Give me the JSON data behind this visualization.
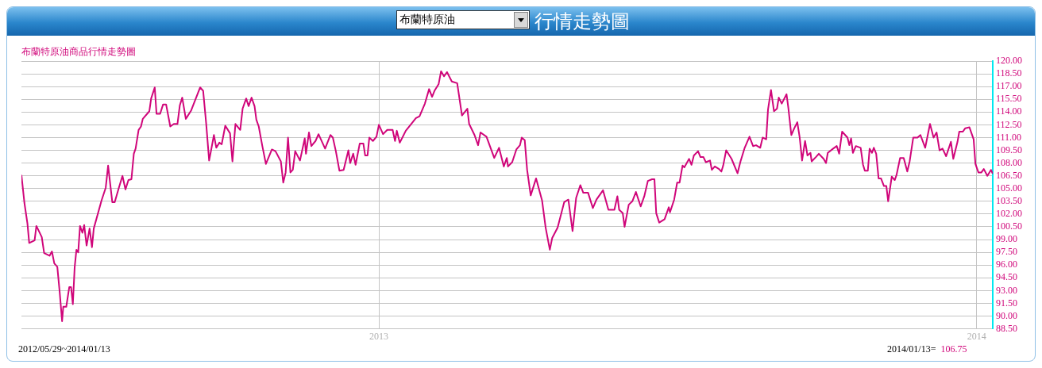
{
  "chart_data": {
    "type": "line",
    "title": "行情走勢圖",
    "subtitle": "布蘭特原油商品行情走勢圖",
    "annotations": [
      "布蘭特原油",
      "2012/05/29~2014/01/13",
      "2014/01/13=",
      "106.75"
    ],
    "color": "#d0067a",
    "marker": "none",
    "line_style": "solid",
    "grid": true,
    "xlim": [
      2012.402,
      2014.027
    ],
    "xticks": [
      2013,
      2014
    ],
    "ylim": [
      88.5,
      120
    ],
    "yticks": [
      {
        "value": 88.5,
        "label": "88.50"
      },
      {
        "value": 90,
        "label": "90.00"
      },
      {
        "value": 91.5,
        "label": "91.50"
      },
      {
        "value": 93,
        "label": "93.00"
      },
      {
        "value": 94.5,
        "label": "94.50"
      },
      {
        "value": 96,
        "label": "96.00"
      },
      {
        "value": 97.5,
        "label": "97.50"
      },
      {
        "value": 99,
        "label": "99.00"
      },
      {
        "value": 100.5,
        "label": "100.50"
      },
      {
        "value": 102,
        "label": "102.00"
      },
      {
        "value": 103.5,
        "label": "103.50"
      },
      {
        "value": 105,
        "label": "105.00"
      },
      {
        "value": 106.5,
        "label": "106.50"
      },
      {
        "value": 108,
        "label": "108.00"
      },
      {
        "value": 109.5,
        "label": "109.50"
      },
      {
        "value": 111,
        "label": "111.00"
      },
      {
        "value": 112.5,
        "label": "112.50"
      },
      {
        "value": 114,
        "label": "114.00"
      },
      {
        "value": 115.5,
        "label": "115.50"
      },
      {
        "value": 117,
        "label": "117.00"
      },
      {
        "value": 118.5,
        "label": "118.50"
      },
      {
        "value": 120,
        "label": "120.00"
      }
    ],
    "x": [
      2012.402,
      2012.407,
      2012.412,
      2012.415,
      2012.424,
      2012.427,
      2012.436,
      2012.44,
      2012.449,
      2012.453,
      2012.457,
      2012.462,
      2012.466,
      2012.47,
      2012.472,
      2012.477,
      2012.482,
      2012.485,
      2012.488,
      2012.491,
      2012.494,
      2012.497,
      2012.5,
      2012.504,
      2012.507,
      2012.511,
      2012.516,
      2012.52,
      2012.523,
      2012.536,
      2012.543,
      2012.547,
      2012.554,
      2012.558,
      2012.565,
      2012.571,
      2012.576,
      2012.581,
      2012.586,
      2012.59,
      2012.593,
      2012.598,
      2012.602,
      2012.605,
      2012.616,
      2012.619,
      2012.625,
      2012.628,
      2012.634,
      2012.639,
      2012.644,
      2012.651,
      2012.657,
      2012.663,
      2012.667,
      2012.671,
      2012.677,
      2012.686,
      2012.701,
      2012.706,
      2012.711,
      2012.716,
      2012.719,
      2012.724,
      2012.728,
      2012.733,
      2012.737,
      2012.743,
      2012.751,
      2012.755,
      2012.76,
      2012.768,
      2012.772,
      2012.778,
      2012.782,
      2012.787,
      2012.792,
      2012.795,
      2012.799,
      2012.805,
      2012.811,
      2012.821,
      2012.827,
      2012.836,
      2012.84,
      2012.844,
      2012.848,
      2012.852,
      2012.856,
      2012.86,
      2012.868,
      2012.876,
      2012.878,
      2012.883,
      2012.887,
      2012.894,
      2012.899,
      2012.91,
      2012.919,
      2012.923,
      2012.928,
      2012.934,
      2012.941,
      2012.949,
      2012.952,
      2012.957,
      2012.961,
      2012.968,
      2012.974,
      2012.977,
      2012.981,
      2012.984,
      2012.99,
      2012.996,
      2013.0,
      2013.007,
      2013.014,
      2013.023,
      2013.027,
      2013.03,
      2013.035,
      2013.045,
      2013.053,
      2013.062,
      2013.068,
      2013.077,
      2013.084,
      2013.089,
      2013.093,
      2013.1,
      2013.104,
      2013.109,
      2013.114,
      2013.122,
      2013.131,
      2013.139,
      2013.148,
      2013.151,
      2013.16,
      2013.166,
      2013.17,
      2013.18,
      2013.193,
      2013.201,
      2013.209,
      2013.214,
      2013.216,
      2013.223,
      2013.23,
      2013.236,
      2013.239,
      2013.244,
      2013.248,
      2013.254,
      2013.263,
      2013.273,
      2013.279,
      2013.286,
      2013.29,
      2013.299,
      2013.31,
      2013.317,
      2013.324,
      2013.33,
      2013.337,
      2013.342,
      2013.35,
      2013.358,
      2013.364,
      2013.375,
      2013.384,
      2013.394,
      2013.399,
      2013.402,
      2013.408,
      2013.411,
      2013.418,
      2013.424,
      2013.43,
      2013.438,
      2013.444,
      2013.45,
      2013.457,
      2013.461,
      2013.464,
      2013.469,
      2013.478,
      2013.485,
      2013.487,
      2013.494,
      2013.499,
      2013.503,
      2013.508,
      2013.511,
      2013.519,
      2013.523,
      2013.527,
      2013.534,
      2013.538,
      2013.543,
      2013.547,
      2013.554,
      2013.557,
      2013.562,
      2013.569,
      2013.573,
      2013.576,
      2013.581,
      2013.59,
      2013.6,
      2013.605,
      2013.612,
      2013.62,
      2013.626,
      2013.631,
      2013.638,
      2013.642,
      2013.648,
      2013.651,
      2013.656,
      2013.661,
      2013.666,
      2013.669,
      2013.674,
      2013.682,
      2013.685,
      2013.69,
      2013.695,
      2013.7,
      2013.704,
      2013.708,
      2013.713,
      2013.717,
      2013.722,
      2013.724,
      2013.731,
      2013.736,
      2013.744,
      2013.748,
      2013.751,
      2013.76,
      2013.766,
      2013.77,
      2013.775,
      2013.784,
      2013.787,
      2013.79,
      2013.793,
      2013.798,
      2013.806,
      2013.81,
      2013.813,
      2013.818,
      2013.821,
      2013.825,
      2013.828,
      2013.832,
      2013.836,
      2013.84,
      2013.845,
      2013.849,
      2013.852,
      2013.858,
      2013.863,
      2013.866,
      2013.872,
      2013.878,
      2013.884,
      2013.888,
      2013.894,
      2013.901,
      2013.906,
      2013.914,
      2013.922,
      2013.928,
      2013.933,
      2013.938,
      2013.943,
      2013.949,
      2013.957,
      2013.961,
      2013.968,
      2013.971,
      2013.977,
      2013.981,
      2013.988,
      2013.995,
      2013.998,
      2014.003,
      2014.008,
      2014.012,
      2014.018,
      2014.024,
      2014.027
    ],
    "values": [
      106.6,
      103.3,
      100.9,
      98.6,
      98.9,
      100.6,
      99.3,
      97.4,
      97.1,
      97.6,
      96.2,
      95.8,
      92.8,
      89.4,
      91.1,
      91.1,
      93.4,
      93.4,
      91.4,
      95.7,
      97.8,
      97.5,
      100.6,
      99.8,
      100.7,
      98.3,
      100.3,
      98.1,
      100.3,
      103.6,
      105.1,
      107.7,
      103.4,
      103.4,
      105.1,
      106.5,
      104.9,
      106.0,
      106.1,
      109.1,
      109.7,
      111.9,
      112.3,
      113.2,
      114.1,
      115.6,
      116.9,
      113.8,
      113.8,
      114.9,
      114.9,
      112.3,
      112.6,
      112.6,
      114.8,
      115.7,
      113.2,
      114.2,
      116.9,
      116.5,
      112.7,
      108.3,
      109.4,
      111.3,
      109.8,
      110.4,
      110.2,
      112.4,
      111.5,
      108.2,
      112.6,
      111.9,
      114.4,
      115.6,
      114.7,
      115.7,
      114.7,
      113.1,
      112.3,
      110.0,
      107.9,
      109.6,
      109.4,
      108.2,
      105.7,
      106.9,
      111.0,
      106.9,
      107.2,
      109.4,
      108.3,
      110.9,
      109.1,
      111.6,
      110.0,
      110.6,
      111.4,
      109.7,
      111.3,
      111.0,
      109.4,
      107.1,
      107.2,
      109.5,
      108.0,
      109.1,
      107.8,
      110.3,
      110.3,
      108.9,
      108.9,
      111.0,
      110.6,
      111.1,
      112.5,
      111.4,
      111.9,
      111.9,
      110.6,
      111.8,
      110.4,
      111.8,
      112.5,
      113.3,
      113.5,
      115.0,
      116.7,
      115.8,
      116.5,
      117.3,
      118.8,
      118.2,
      118.7,
      117.6,
      117.4,
      113.6,
      114.4,
      112.6,
      111.3,
      110.1,
      111.6,
      111.1,
      108.6,
      109.8,
      107.6,
      108.6,
      107.6,
      108.1,
      109.6,
      110.1,
      111.0,
      110.7,
      107.2,
      104.2,
      106.2,
      103.6,
      100.4,
      97.8,
      99.2,
      100.4,
      103.4,
      103.7,
      100.0,
      103.9,
      105.4,
      104.5,
      104.5,
      102.7,
      103.7,
      104.8,
      102.5,
      102.5,
      104.1,
      102.5,
      102.1,
      100.5,
      103.1,
      103.5,
      104.6,
      102.9,
      104.1,
      105.9,
      106.1,
      106.1,
      102.1,
      101.0,
      101.4,
      102.8,
      102.2,
      103.7,
      105.7,
      105.7,
      107.7,
      107.5,
      108.5,
      107.8,
      108.9,
      109.4,
      108.7,
      108.7,
      108.1,
      108.3,
      107.2,
      107.6,
      107.3,
      107.0,
      107.7,
      109.5,
      108.5,
      106.8,
      108.2,
      109.8,
      111.1,
      110.0,
      110.1,
      109.8,
      111.0,
      110.8,
      114.3,
      116.6,
      114.1,
      114.4,
      115.7,
      115.0,
      116.1,
      114.5,
      111.3,
      112.1,
      112.8,
      111.0,
      108.3,
      110.6,
      108.9,
      109.2,
      108.2,
      108.7,
      109.1,
      108.5,
      108.0,
      109.2,
      109.7,
      110.0,
      109.1,
      111.7,
      111.0,
      110.1,
      110.9,
      109.2,
      110.0,
      109.8,
      107.8,
      107.1,
      107.1,
      109.7,
      109.2,
      109.8,
      109.1,
      106.2,
      106.2,
      105.3,
      105.3,
      103.5,
      106.4,
      106.0,
      106.6,
      108.6,
      108.6,
      107.0,
      108.2,
      111.0,
      111.0,
      111.3,
      109.8,
      112.6,
      111.0,
      111.6,
      109.5,
      109.7,
      108.8,
      110.5,
      108.5,
      110.5,
      111.7,
      111.7,
      112.1,
      112.2,
      110.8,
      107.9,
      106.9,
      106.9,
      107.3,
      106.5,
      107.2,
      106.75
    ]
  }
}
